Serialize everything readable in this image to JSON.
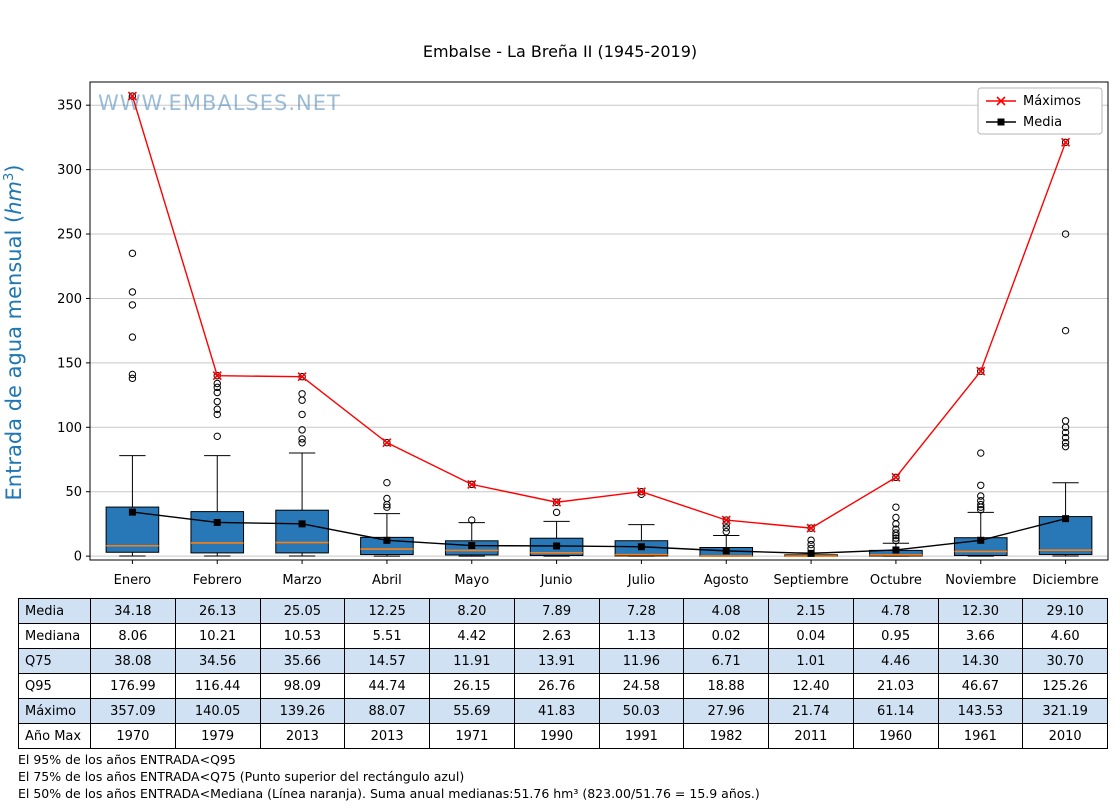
{
  "title": "Embalse - La Breña II (1945-2019)",
  "watermark": "WWW.EMBALSES.NET",
  "ylabel": {
    "prefix": "Entrada de agua mensual (",
    "unit": "hm",
    "sup": "3",
    "suffix": ")"
  },
  "legend": {
    "maximos": "Máximos",
    "media": "Media"
  },
  "colors": {
    "box_fill": "#2878b8",
    "box_edge": "#000000",
    "median_line": "#ff7f0e",
    "max_line": "#ff0000",
    "mean_line": "#000000",
    "grid_line": "#c8c8c8",
    "table_highlight": "#cfe1f3",
    "ylabel_color": "#1f77b4",
    "watermark_color": "#4a86b8"
  },
  "chart_data": {
    "type": "boxplot",
    "title": "Embalse - La Breña II (1945-2019)",
    "ylabel": "Entrada de agua mensual (hm³)",
    "categories": [
      "Enero",
      "Febrero",
      "Marzo",
      "Abril",
      "Mayo",
      "Junio",
      "Julio",
      "Agosto",
      "Septiembre",
      "Octubre",
      "Noviembre",
      "Diciembre"
    ],
    "ylim": [
      -3,
      368
    ],
    "yticks": [
      0,
      50,
      100,
      150,
      200,
      250,
      300,
      350
    ],
    "grid": "horizontal",
    "legend_position": "upper right",
    "series": [
      {
        "name": "Máximos",
        "type": "line",
        "marker": "x",
        "color": "#ff0000",
        "values": [
          357.09,
          140.05,
          139.26,
          88.07,
          55.69,
          41.83,
          50.03,
          27.96,
          21.74,
          61.14,
          143.53,
          321.19
        ]
      },
      {
        "name": "Media",
        "type": "line",
        "marker": "square",
        "color": "#000000",
        "values": [
          34.18,
          26.13,
          25.05,
          12.25,
          8.2,
          7.89,
          7.28,
          4.08,
          2.15,
          4.78,
          12.3,
          29.1
        ]
      }
    ],
    "boxes": [
      {
        "month": "Enero",
        "q1": 3.0,
        "median": 8.06,
        "q3": 38.08,
        "whisker_low": 0.1,
        "whisker_high": 78,
        "outliers": [
          138,
          141,
          170,
          195,
          205,
          235,
          357.09
        ]
      },
      {
        "month": "Febrero",
        "q1": 2.5,
        "median": 10.21,
        "q3": 34.56,
        "whisker_low": 0.1,
        "whisker_high": 78,
        "outliers": [
          93,
          110,
          114,
          120,
          127,
          131,
          134,
          140.05
        ]
      },
      {
        "month": "Marzo",
        "q1": 2.5,
        "median": 10.53,
        "q3": 35.66,
        "whisker_low": 0.1,
        "whisker_high": 80,
        "outliers": [
          88,
          91,
          98,
          110,
          121,
          126,
          139.26
        ]
      },
      {
        "month": "Abril",
        "q1": 1.2,
        "median": 5.51,
        "q3": 14.57,
        "whisker_low": 0.0,
        "whisker_high": 33,
        "outliers": [
          38,
          40,
          44.74,
          57,
          88.07
        ]
      },
      {
        "month": "Mayo",
        "q1": 0.9,
        "median": 4.42,
        "q3": 11.91,
        "whisker_low": 0.0,
        "whisker_high": 26,
        "outliers": [
          28,
          55.69
        ]
      },
      {
        "month": "Junio",
        "q1": 0.5,
        "median": 2.63,
        "q3": 13.91,
        "whisker_low": 0.0,
        "whisker_high": 27,
        "outliers": [
          34,
          41.83
        ]
      },
      {
        "month": "Julio",
        "q1": 0.15,
        "median": 1.13,
        "q3": 11.96,
        "whisker_low": 0.0,
        "whisker_high": 24.5,
        "outliers": [
          48,
          50.03
        ]
      },
      {
        "month": "Agosto",
        "q1": 0.0,
        "median": 0.02,
        "q3": 6.71,
        "whisker_low": 0.0,
        "whisker_high": 16,
        "outliers": [
          19,
          22,
          25,
          27.96
        ]
      },
      {
        "month": "Septiembre",
        "q1": 0.0,
        "median": 0.04,
        "q3": 1.01,
        "whisker_low": 0.0,
        "whisker_high": 2.5,
        "outliers": [
          6,
          9,
          12.4,
          21.74
        ]
      },
      {
        "month": "Octubre",
        "q1": 0.1,
        "median": 0.95,
        "q3": 4.46,
        "whisker_low": 0.0,
        "whisker_high": 10,
        "outliers": [
          12,
          14,
          16,
          18,
          21.03,
          25,
          30,
          38,
          61.14
        ]
      },
      {
        "month": "Noviembre",
        "q1": 0.5,
        "median": 3.66,
        "q3": 14.3,
        "whisker_low": 0.0,
        "whisker_high": 34,
        "outliers": [
          36,
          38,
          40,
          43,
          46.67,
          55,
          80,
          143.53
        ]
      },
      {
        "month": "Diciembre",
        "q1": 1.2,
        "median": 4.6,
        "q3": 30.7,
        "whisker_low": 0.1,
        "whisker_high": 57,
        "outliers": [
          85,
          88,
          92,
          96,
          100,
          105,
          175,
          250,
          321.19
        ]
      }
    ]
  },
  "table": {
    "rows": [
      {
        "label": "Media",
        "highlight": true,
        "values": [
          "34.18",
          "26.13",
          "25.05",
          "12.25",
          "8.20",
          "7.89",
          "7.28",
          "4.08",
          "2.15",
          "4.78",
          "12.30",
          "29.10"
        ]
      },
      {
        "label": "Mediana",
        "highlight": false,
        "values": [
          "8.06",
          "10.21",
          "10.53",
          "5.51",
          "4.42",
          "2.63",
          "1.13",
          "0.02",
          "0.04",
          "0.95",
          "3.66",
          "4.60"
        ]
      },
      {
        "label": "Q75",
        "highlight": true,
        "values": [
          "38.08",
          "34.56",
          "35.66",
          "14.57",
          "11.91",
          "13.91",
          "11.96",
          "6.71",
          "1.01",
          "4.46",
          "14.30",
          "30.70"
        ]
      },
      {
        "label": "Q95",
        "highlight": false,
        "values": [
          "176.99",
          "116.44",
          "98.09",
          "44.74",
          "26.15",
          "26.76",
          "24.58",
          "18.88",
          "12.40",
          "21.03",
          "46.67",
          "125.26"
        ]
      },
      {
        "label": "Máximo",
        "highlight": true,
        "values": [
          "357.09",
          "140.05",
          "139.26",
          "88.07",
          "55.69",
          "41.83",
          "50.03",
          "27.96",
          "21.74",
          "61.14",
          "143.53",
          "321.19"
        ]
      },
      {
        "label": "Año Max",
        "highlight": false,
        "values": [
          "1970",
          "1979",
          "2013",
          "2013",
          "1971",
          "1990",
          "1991",
          "1982",
          "2011",
          "1960",
          "1961",
          "2010"
        ]
      }
    ]
  },
  "footnotes": [
    "El 95% de los años ENTRADA<Q95",
    "El 75% de los años ENTRADA<Q75 (Punto superior del rectángulo azul)",
    "El 50% de los años ENTRADA<Mediana (Línea naranja). Suma anual medianas:51.76 hm³ (823.00/51.76 = 15.9 años.)"
  ]
}
